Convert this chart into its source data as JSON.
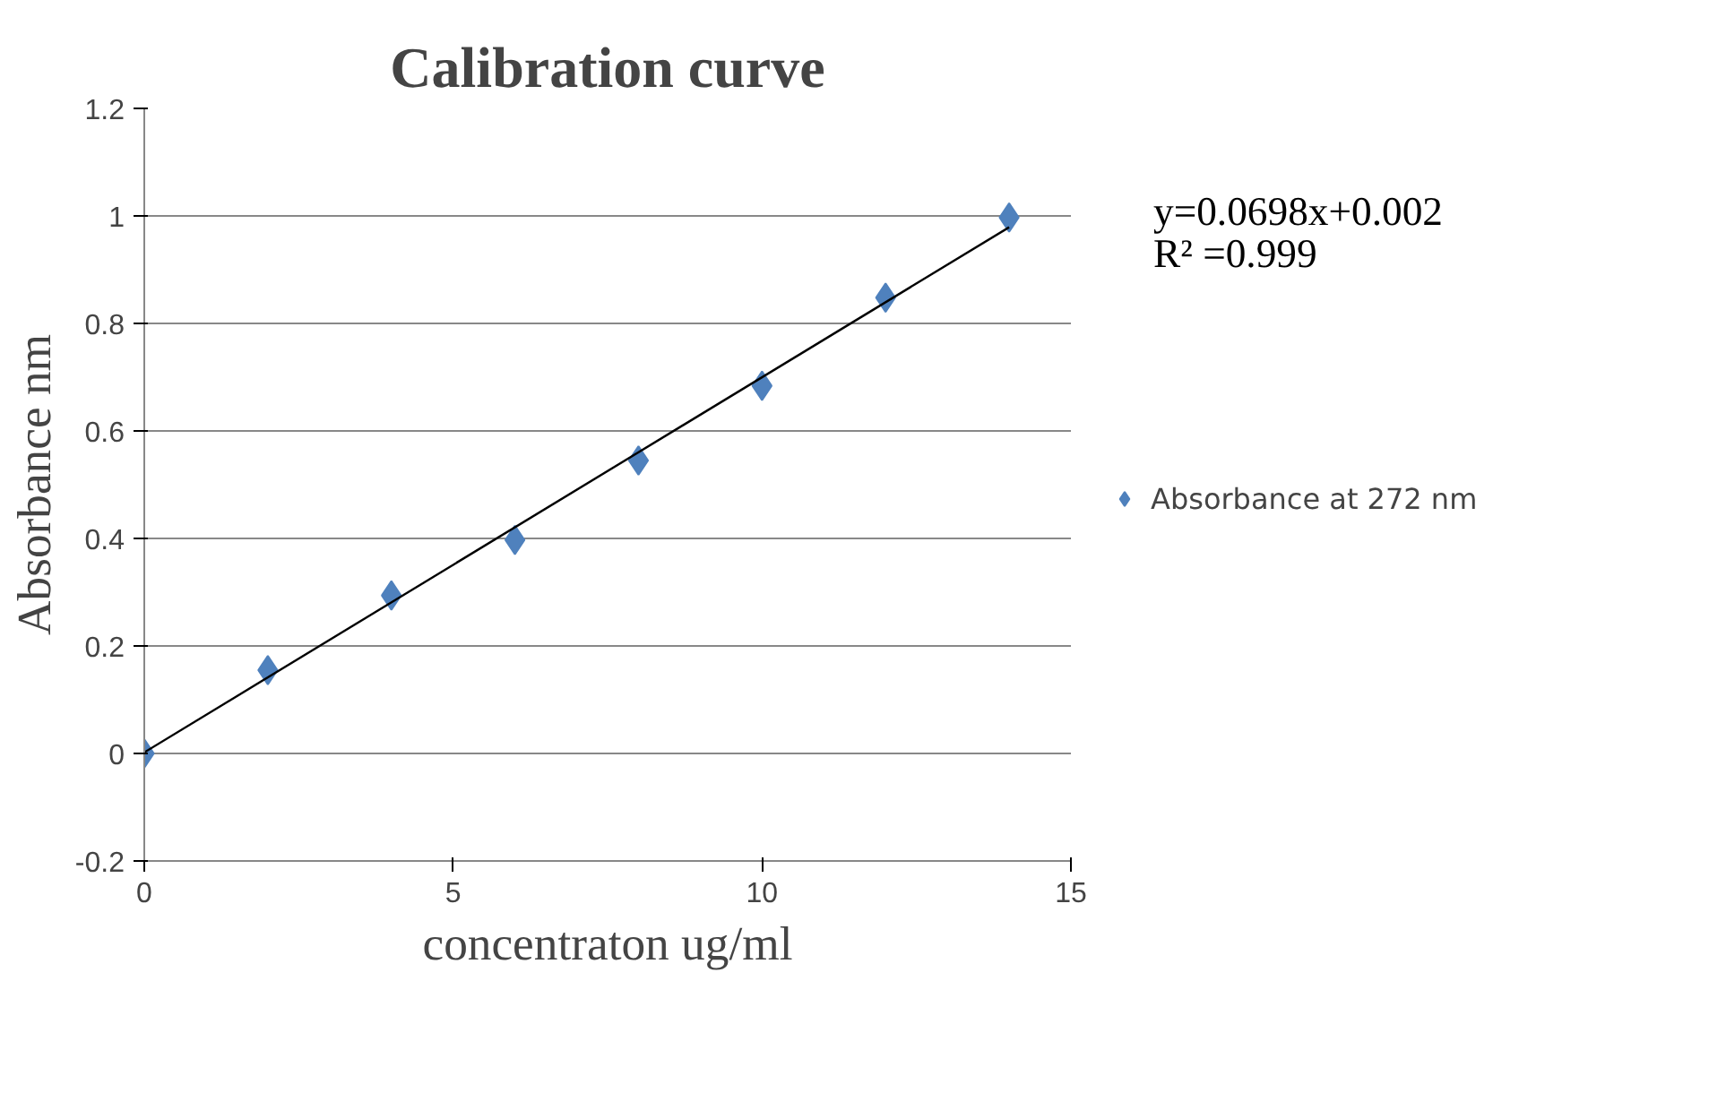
{
  "chart_data": {
    "type": "scatter",
    "title": "Calibration curve",
    "xlabel": "concentraton ug/ml",
    "ylabel": "Absorbance nm",
    "x": [
      0,
      2,
      4,
      6,
      8,
      10,
      12,
      14
    ],
    "series": [
      {
        "name": "Absorbance at 272 nm",
        "color": "#4f81bd",
        "values": [
          0,
          0.155,
          0.294,
          0.397,
          0.545,
          0.684,
          0.848,
          0.997
        ]
      },
      {
        "type": "line",
        "marker": "none",
        "color": "#000000",
        "x": [
          0,
          14
        ],
        "values": [
          0.002,
          0.979
        ]
      }
    ],
    "xlim": [
      0,
      15
    ],
    "xticks": [
      0,
      5,
      10,
      15
    ],
    "ylim": [
      -0.2,
      1.2
    ],
    "yticks": [
      -0.2,
      0,
      0.2,
      0.4,
      0.6,
      0.8,
      1,
      1.2
    ],
    "grid": "y",
    "legend": "right",
    "marker": "diamond",
    "annotations": [
      "y=0.0698x+0.002",
      "R² =0.999"
    ]
  }
}
